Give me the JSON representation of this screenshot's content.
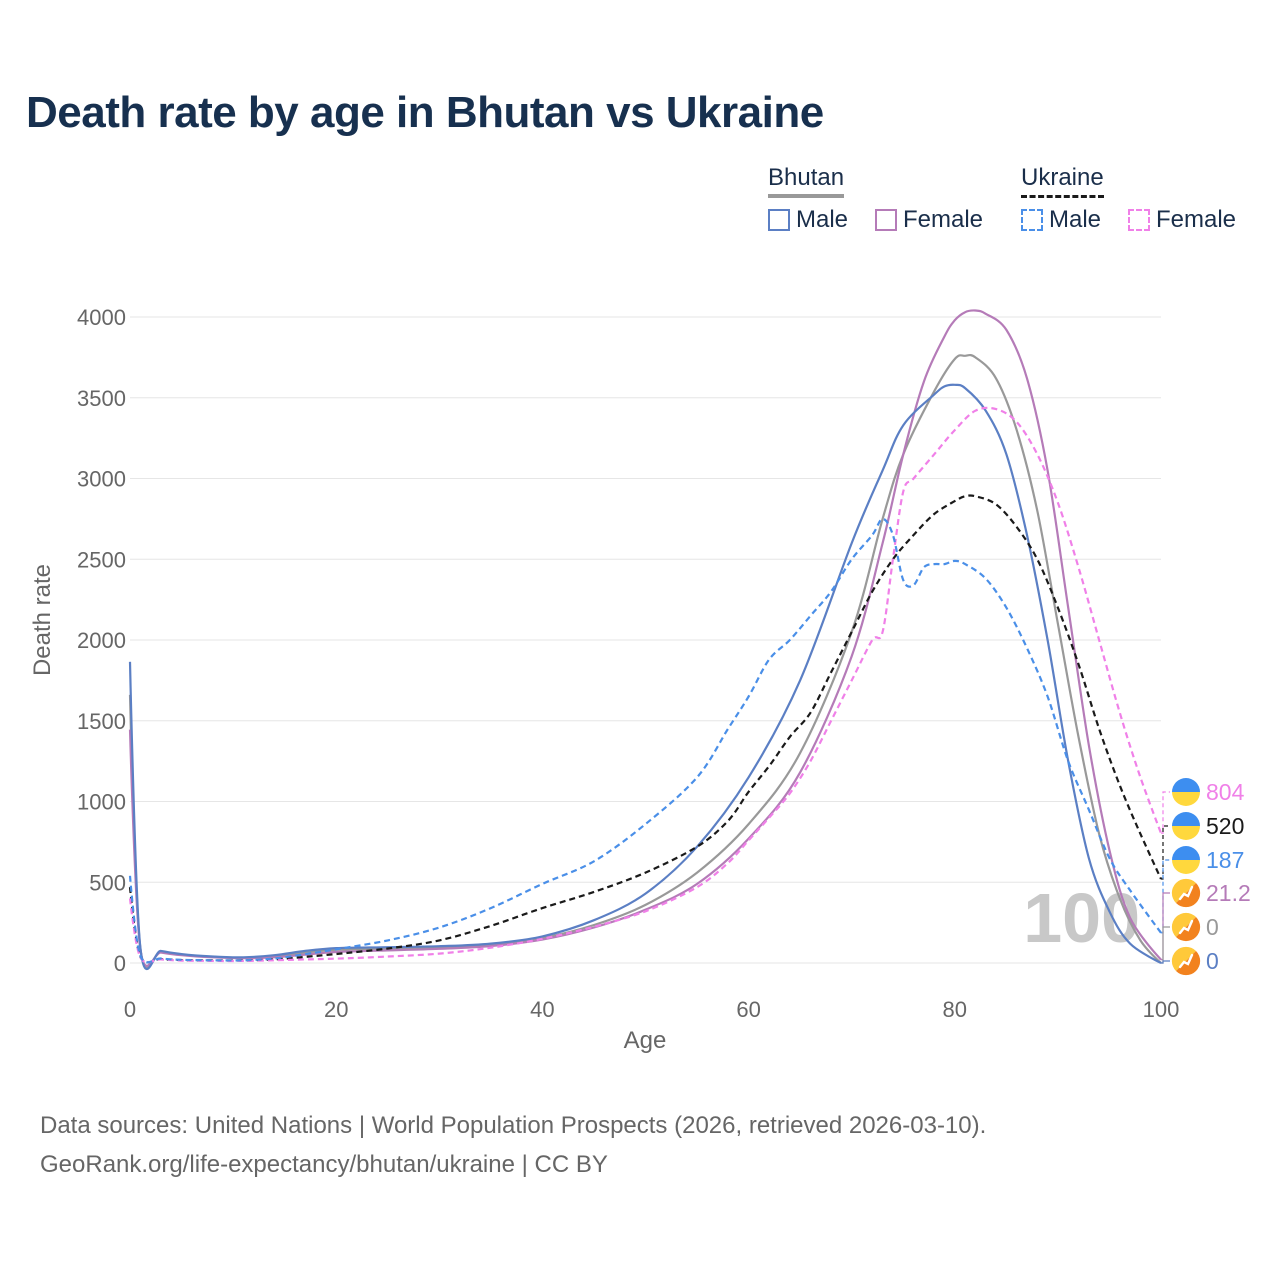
{
  "title": "Death rate by age in Bhutan vs Ukraine",
  "legend": {
    "bhutan_label": "Bhutan",
    "ukraine_label": "Ukraine",
    "male_label": "Male",
    "female_label": "Female"
  },
  "colors": {
    "bhutan_total": "#999999",
    "bhutan_male": "#5b7fc4",
    "bhutan_female": "#b57bb8",
    "ukraine_total": "#1a1a1a",
    "ukraine_male": "#4a8fe8",
    "ukraine_female": "#f080e8",
    "grid": "#e6e6e6",
    "axis_text": "#666666",
    "watermark": "#c8c8c8"
  },
  "watermark_year": "100",
  "end_labels": [
    "804",
    "520",
    "187",
    "21.2",
    "0",
    "0"
  ],
  "source_line1": "Data sources: United Nations | World Population Prospects (2026, retrieved 2026-03-10).",
  "source_line2": "GeoRank.org/life-expectancy/bhutan/ukraine | CC BY",
  "chart_data": {
    "type": "line",
    "title": "Death rate by age in Bhutan vs Ukraine",
    "xlabel": "Age",
    "ylabel": "Death rate",
    "xlim": [
      0,
      100
    ],
    "ylim": [
      0,
      4000
    ],
    "xticks": [
      0,
      20,
      40,
      60,
      80,
      100
    ],
    "yticks": [
      0,
      500,
      1000,
      1500,
      2000,
      2500,
      3000,
      3500,
      4000
    ],
    "series": [
      {
        "name": "Bhutan Total",
        "key": "bhutan_total",
        "dash": false,
        "points": [
          [
            0,
            1660
          ],
          [
            1,
            95
          ],
          [
            3,
            70
          ],
          [
            5,
            52
          ],
          [
            8,
            38
          ],
          [
            11,
            33
          ],
          [
            14,
            42
          ],
          [
            17,
            65
          ],
          [
            20,
            82
          ],
          [
            25,
            90
          ],
          [
            30,
            98
          ],
          [
            35,
            115
          ],
          [
            40,
            155
          ],
          [
            45,
            235
          ],
          [
            50,
            360
          ],
          [
            55,
            560
          ],
          [
            60,
            860
          ],
          [
            65,
            1300
          ],
          [
            70,
            2050
          ],
          [
            73,
            2750
          ],
          [
            75,
            3150
          ],
          [
            78,
            3540
          ],
          [
            80,
            3740
          ],
          [
            81,
            3760
          ],
          [
            82,
            3750
          ],
          [
            84,
            3620
          ],
          [
            86,
            3300
          ],
          [
            88,
            2800
          ],
          [
            90,
            2100
          ],
          [
            92,
            1400
          ],
          [
            94,
            800
          ],
          [
            96,
            400
          ],
          [
            98,
            140
          ],
          [
            100,
            0
          ]
        ]
      },
      {
        "name": "Bhutan Male",
        "key": "bhutan_male",
        "dash": false,
        "points": [
          [
            0,
            1865
          ],
          [
            1,
            100
          ],
          [
            3,
            75
          ],
          [
            5,
            55
          ],
          [
            8,
            40
          ],
          [
            11,
            35
          ],
          [
            14,
            48
          ],
          [
            17,
            75
          ],
          [
            20,
            92
          ],
          [
            25,
            98
          ],
          [
            30,
            104
          ],
          [
            35,
            120
          ],
          [
            40,
            165
          ],
          [
            45,
            265
          ],
          [
            50,
            430
          ],
          [
            55,
            720
          ],
          [
            60,
            1150
          ],
          [
            65,
            1750
          ],
          [
            70,
            2600
          ],
          [
            73,
            3050
          ],
          [
            75,
            3330
          ],
          [
            78,
            3520
          ],
          [
            79,
            3570
          ],
          [
            80,
            3580
          ],
          [
            81,
            3560
          ],
          [
            83,
            3420
          ],
          [
            85,
            3150
          ],
          [
            87,
            2650
          ],
          [
            89,
            2000
          ],
          [
            91,
            1250
          ],
          [
            93,
            650
          ],
          [
            95,
            320
          ],
          [
            97,
            120
          ],
          [
            100,
            0
          ]
        ]
      },
      {
        "name": "Bhutan Female",
        "key": "bhutan_female",
        "dash": false,
        "points": [
          [
            0,
            1445
          ],
          [
            1,
            90
          ],
          [
            3,
            65
          ],
          [
            5,
            48
          ],
          [
            8,
            35
          ],
          [
            11,
            30
          ],
          [
            14,
            35
          ],
          [
            17,
            52
          ],
          [
            20,
            68
          ],
          [
            25,
            78
          ],
          [
            30,
            88
          ],
          [
            35,
            105
          ],
          [
            40,
            145
          ],
          [
            45,
            220
          ],
          [
            50,
            330
          ],
          [
            55,
            490
          ],
          [
            60,
            770
          ],
          [
            65,
            1180
          ],
          [
            70,
            1900
          ],
          [
            73,
            2600
          ],
          [
            75,
            3150
          ],
          [
            77,
            3600
          ],
          [
            79,
            3880
          ],
          [
            80,
            3980
          ],
          [
            81,
            4030
          ],
          [
            82,
            4040
          ],
          [
            83,
            4020
          ],
          [
            85,
            3920
          ],
          [
            87,
            3620
          ],
          [
            89,
            3050
          ],
          [
            91,
            2200
          ],
          [
            93,
            1350
          ],
          [
            95,
            700
          ],
          [
            97,
            280
          ],
          [
            100,
            21
          ]
        ]
      },
      {
        "name": "Ukraine Total",
        "key": "ukraine_total",
        "dash": true,
        "points": [
          [
            0,
            470
          ],
          [
            1,
            40
          ],
          [
            3,
            25
          ],
          [
            5,
            18
          ],
          [
            8,
            16
          ],
          [
            11,
            16
          ],
          [
            14,
            22
          ],
          [
            17,
            38
          ],
          [
            20,
            56
          ],
          [
            25,
            90
          ],
          [
            30,
            140
          ],
          [
            35,
            230
          ],
          [
            40,
            340
          ],
          [
            45,
            440
          ],
          [
            50,
            560
          ],
          [
            55,
            720
          ],
          [
            58,
            880
          ],
          [
            60,
            1060
          ],
          [
            62,
            1220
          ],
          [
            64,
            1400
          ],
          [
            66,
            1550
          ],
          [
            68,
            1800
          ],
          [
            70,
            2050
          ],
          [
            72,
            2300
          ],
          [
            74,
            2500
          ],
          [
            76,
            2650
          ],
          [
            78,
            2780
          ],
          [
            80,
            2860
          ],
          [
            81,
            2890
          ],
          [
            82,
            2890
          ],
          [
            84,
            2840
          ],
          [
            86,
            2700
          ],
          [
            88,
            2500
          ],
          [
            90,
            2200
          ],
          [
            92,
            1850
          ],
          [
            94,
            1450
          ],
          [
            96,
            1100
          ],
          [
            98,
            800
          ],
          [
            100,
            520
          ]
        ]
      },
      {
        "name": "Ukraine Male",
        "key": "ukraine_male",
        "dash": true,
        "points": [
          [
            0,
            540
          ],
          [
            1,
            45
          ],
          [
            3,
            28
          ],
          [
            5,
            20
          ],
          [
            8,
            17
          ],
          [
            11,
            17
          ],
          [
            14,
            28
          ],
          [
            17,
            55
          ],
          [
            20,
            85
          ],
          [
            25,
            140
          ],
          [
            30,
            220
          ],
          [
            35,
            340
          ],
          [
            40,
            490
          ],
          [
            45,
            630
          ],
          [
            50,
            860
          ],
          [
            55,
            1150
          ],
          [
            58,
            1450
          ],
          [
            60,
            1650
          ],
          [
            62,
            1880
          ],
          [
            64,
            2000
          ],
          [
            66,
            2150
          ],
          [
            68,
            2300
          ],
          [
            70,
            2500
          ],
          [
            72,
            2650
          ],
          [
            73,
            2750
          ],
          [
            74,
            2650
          ],
          [
            75,
            2370
          ],
          [
            76,
            2340
          ],
          [
            77,
            2450
          ],
          [
            78,
            2470
          ],
          [
            79,
            2470
          ],
          [
            80,
            2490
          ],
          [
            81,
            2470
          ],
          [
            83,
            2380
          ],
          [
            85,
            2200
          ],
          [
            87,
            1950
          ],
          [
            89,
            1650
          ],
          [
            91,
            1250
          ],
          [
            93,
            950
          ],
          [
            95,
            650
          ],
          [
            97,
            450
          ],
          [
            100,
            187
          ]
        ]
      },
      {
        "name": "Ukraine Female",
        "key": "ukraine_female",
        "dash": true,
        "points": [
          [
            0,
            400
          ],
          [
            1,
            35
          ],
          [
            3,
            22
          ],
          [
            5,
            15
          ],
          [
            8,
            13
          ],
          [
            11,
            13
          ],
          [
            14,
            17
          ],
          [
            17,
            22
          ],
          [
            20,
            27
          ],
          [
            25,
            40
          ],
          [
            30,
            58
          ],
          [
            35,
            95
          ],
          [
            40,
            150
          ],
          [
            45,
            225
          ],
          [
            50,
            320
          ],
          [
            55,
            470
          ],
          [
            58,
            620
          ],
          [
            60,
            760
          ],
          [
            62,
            900
          ],
          [
            64,
            1050
          ],
          [
            66,
            1250
          ],
          [
            68,
            1500
          ],
          [
            70,
            1750
          ],
          [
            72,
            2000
          ],
          [
            73,
            2050
          ],
          [
            74,
            2500
          ],
          [
            75,
            2920
          ],
          [
            76,
            3000
          ],
          [
            78,
            3150
          ],
          [
            80,
            3300
          ],
          [
            82,
            3420
          ],
          [
            84,
            3430
          ],
          [
            86,
            3350
          ],
          [
            88,
            3150
          ],
          [
            90,
            2850
          ],
          [
            92,
            2450
          ],
          [
            94,
            2000
          ],
          [
            96,
            1550
          ],
          [
            98,
            1150
          ],
          [
            100,
            804
          ]
        ]
      }
    ]
  }
}
